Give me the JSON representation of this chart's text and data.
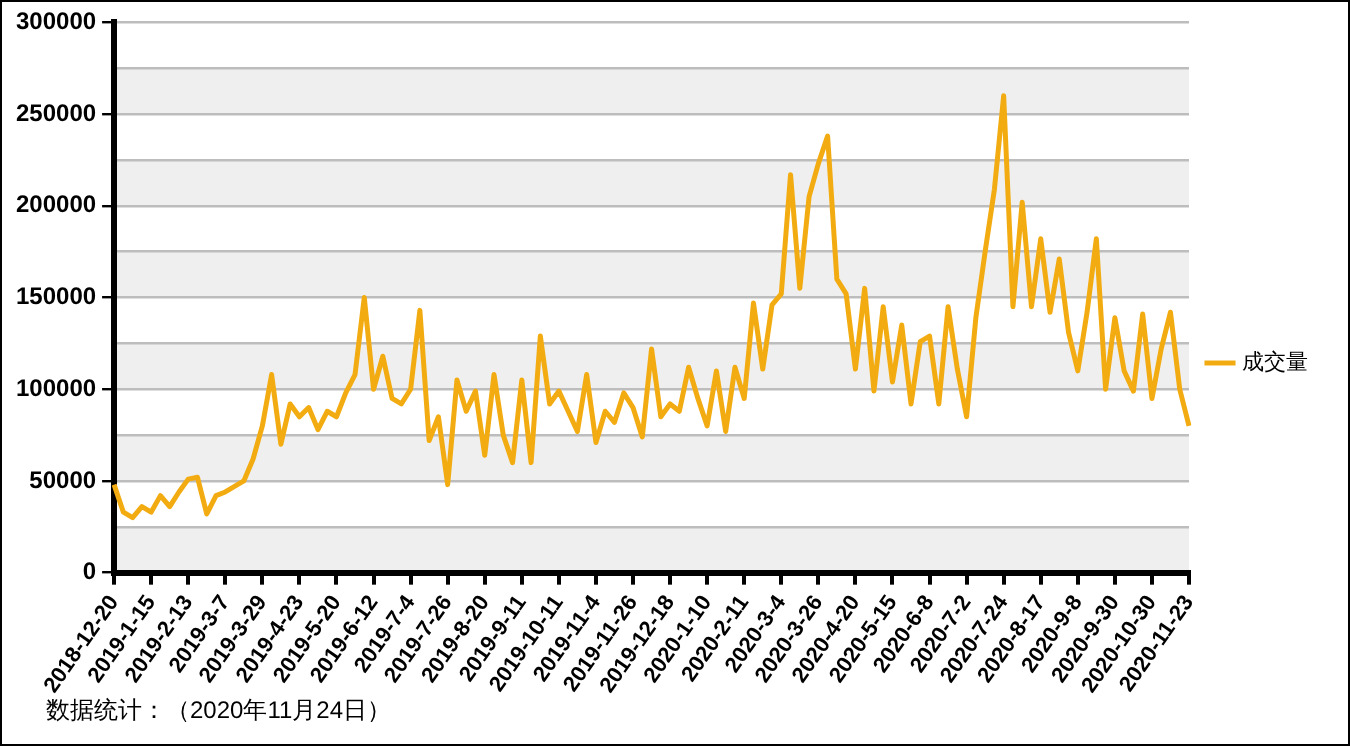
{
  "chart_data": {
    "type": "line",
    "categories": [
      "2018-12-20",
      null,
      null,
      null,
      "2019-1-15",
      null,
      null,
      null,
      "2019-2-13",
      null,
      null,
      null,
      "2019-3-7",
      null,
      null,
      null,
      "2019-3-29",
      null,
      null,
      null,
      "2019-4-23",
      null,
      null,
      null,
      "2019-5-20",
      null,
      null,
      null,
      "2019-6-12",
      null,
      null,
      null,
      "2019-7-4",
      null,
      null,
      null,
      "2019-7-26",
      null,
      null,
      null,
      "2019-8-20",
      null,
      null,
      null,
      "2019-9-11",
      null,
      null,
      null,
      "2019-10-11",
      null,
      null,
      null,
      "2019-11-4",
      null,
      null,
      null,
      "2019-11-26",
      null,
      null,
      null,
      "2019-12-18",
      null,
      null,
      null,
      "2020-1-10",
      null,
      null,
      null,
      "2020-2-11",
      null,
      null,
      null,
      "2020-3-4",
      null,
      null,
      null,
      "2020-3-26",
      null,
      null,
      null,
      "2020-4-20",
      null,
      null,
      null,
      "2020-5-15",
      null,
      null,
      null,
      "2020-6-8",
      null,
      null,
      null,
      "2020-7-2",
      null,
      null,
      null,
      "2020-7-24",
      null,
      null,
      null,
      "2020-8-17",
      null,
      null,
      null,
      "2020-9-8",
      null,
      null,
      null,
      "2020-9-30",
      null,
      null,
      null,
      "2020-10-30",
      null,
      null,
      null,
      "2020-11-23"
    ],
    "series": [
      {
        "name": "成交量",
        "color": "#f2ac12",
        "values": [
          48000,
          33000,
          30000,
          36000,
          33000,
          42000,
          36000,
          44000,
          51000,
          52000,
          32000,
          42000,
          44000,
          47000,
          50000,
          62000,
          80000,
          108000,
          70000,
          92000,
          85000,
          90000,
          78000,
          88000,
          85000,
          98000,
          108000,
          150000,
          100000,
          118000,
          95000,
          92000,
          100000,
          143000,
          72000,
          85000,
          48000,
          105000,
          88000,
          99000,
          64000,
          108000,
          75000,
          60000,
          105000,
          60000,
          129000,
          92000,
          99000,
          88000,
          77000,
          108000,
          71000,
          88000,
          82000,
          98000,
          90000,
          74000,
          122000,
          85000,
          92000,
          88000,
          112000,
          95000,
          80000,
          110000,
          77000,
          112000,
          95000,
          147000,
          111000,
          146000,
          152000,
          217000,
          155000,
          205000,
          223000,
          238000,
          160000,
          152000,
          111000,
          155000,
          99000,
          145000,
          104000,
          135000,
          92000,
          126000,
          129000,
          92000,
          145000,
          111000,
          85000,
          139000,
          175000,
          209000,
          260000,
          145000,
          202000,
          145000,
          182000,
          142000,
          171000,
          131000,
          110000,
          142000,
          182000,
          100000,
          139000,
          110000,
          99000,
          141000,
          95000,
          122000,
          142000,
          100000,
          80000
        ]
      }
    ],
    "ylim": [
      0,
      300000
    ],
    "yticks": [
      0,
      {
        "value": 25000,
        "label": null
      },
      50000,
      {
        "value": 75000,
        "label": null
      },
      100000,
      {
        "value": 125000,
        "label": null
      },
      150000,
      {
        "value": 175000,
        "label": null
      },
      200000,
      {
        "value": 225000,
        "label": null
      },
      250000,
      {
        "value": 275000,
        "label": null
      },
      300000
    ],
    "grid": "y",
    "legend": "right",
    "marker": "none",
    "line_style": "solid",
    "annotations": [
      "数据统计：（2020年11月24日）"
    ]
  }
}
